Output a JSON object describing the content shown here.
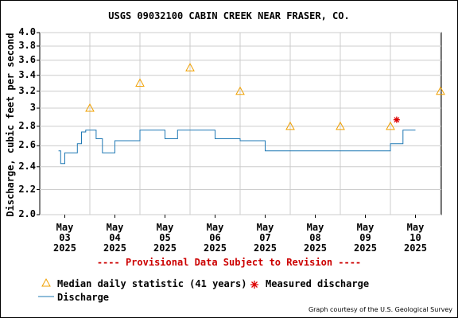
{
  "chart_data": {
    "type": "line",
    "title": "USGS 09032100 CABIN CREEK NEAR FRASER, CO.",
    "ylabel": "Discharge, cubic feet per second",
    "ylim": [
      2.0,
      4.0
    ],
    "y_scale": "log",
    "y_ticks": [
      "4.0",
      "3.8",
      "3.6",
      "3.4",
      "3.2",
      "3",
      "2.8",
      "2.6",
      "2.4",
      "2.2",
      "2.0"
    ],
    "x_ticks": [
      {
        "month": "May",
        "day": "03",
        "year": "2025"
      },
      {
        "month": "May",
        "day": "04",
        "year": "2025"
      },
      {
        "month": "May",
        "day": "05",
        "year": "2025"
      },
      {
        "month": "May",
        "day": "06",
        "year": "2025"
      },
      {
        "month": "May",
        "day": "07",
        "year": "2025"
      },
      {
        "month": "May",
        "day": "08",
        "year": "2025"
      },
      {
        "month": "May",
        "day": "09",
        "year": "2025"
      },
      {
        "month": "May",
        "day": "10",
        "year": "2025"
      }
    ],
    "grid": true,
    "series": [
      {
        "name": "Discharge",
        "color": "#1f78b4",
        "x": [
          "2025-05-02 21:00",
          "2025-05-02 22:00",
          "2025-05-03 00:00",
          "2025-05-03 03:00",
          "2025-05-03 06:00",
          "2025-05-03 08:00",
          "2025-05-03 10:00",
          "2025-05-03 15:00",
          "2025-05-03 18:00",
          "2025-05-04 00:00",
          "2025-05-04 06:00",
          "2025-05-04 12:00",
          "2025-05-04 18:00",
          "2025-05-05 00:00",
          "2025-05-05 06:00",
          "2025-05-05 12:00",
          "2025-05-05 18:00",
          "2025-05-06 00:00",
          "2025-05-06 06:00",
          "2025-05-06 12:00",
          "2025-05-06 18:00",
          "2025-05-07 00:00",
          "2025-05-07 06:00",
          "2025-05-07 12:00",
          "2025-05-07 18:00",
          "2025-05-08 00:00",
          "2025-05-08 06:00",
          "2025-05-08 12:00",
          "2025-05-08 18:00",
          "2025-05-09 00:00",
          "2025-05-09 06:00",
          "2025-05-09 12:00",
          "2025-05-09 18:00",
          "2025-05-10 00:00"
        ],
        "values": [
          2.55,
          2.43,
          2.53,
          2.53,
          2.62,
          2.74,
          2.76,
          2.67,
          2.53,
          2.65,
          2.65,
          2.76,
          2.76,
          2.67,
          2.76,
          2.76,
          2.76,
          2.67,
          2.67,
          2.65,
          2.65,
          2.55,
          2.55,
          2.55,
          2.55,
          2.55,
          2.55,
          2.55,
          2.55,
          2.55,
          2.55,
          2.62,
          2.76,
          2.76
        ]
      },
      {
        "name": "Median daily statistic (41 years)",
        "color": "#f0a000",
        "x": [
          "2025-05-03 12:00",
          "2025-05-04 12:00",
          "2025-05-05 12:00",
          "2025-05-06 12:00",
          "2025-05-07 12:00",
          "2025-05-08 12:00",
          "2025-05-09 12:00",
          "2025-05-10 12:00"
        ],
        "values": [
          3.0,
          3.3,
          3.5,
          3.2,
          2.8,
          2.8,
          2.8,
          3.2
        ]
      },
      {
        "name": "Measured discharge",
        "color": "#dd0000",
        "x": [
          "2025-05-09 15:00"
        ],
        "values": [
          2.87
        ]
      }
    ],
    "note": "---- Provisional Data Subject to Revision ----",
    "credit": "Graph courtesy of the U.S. Geological Survey"
  }
}
